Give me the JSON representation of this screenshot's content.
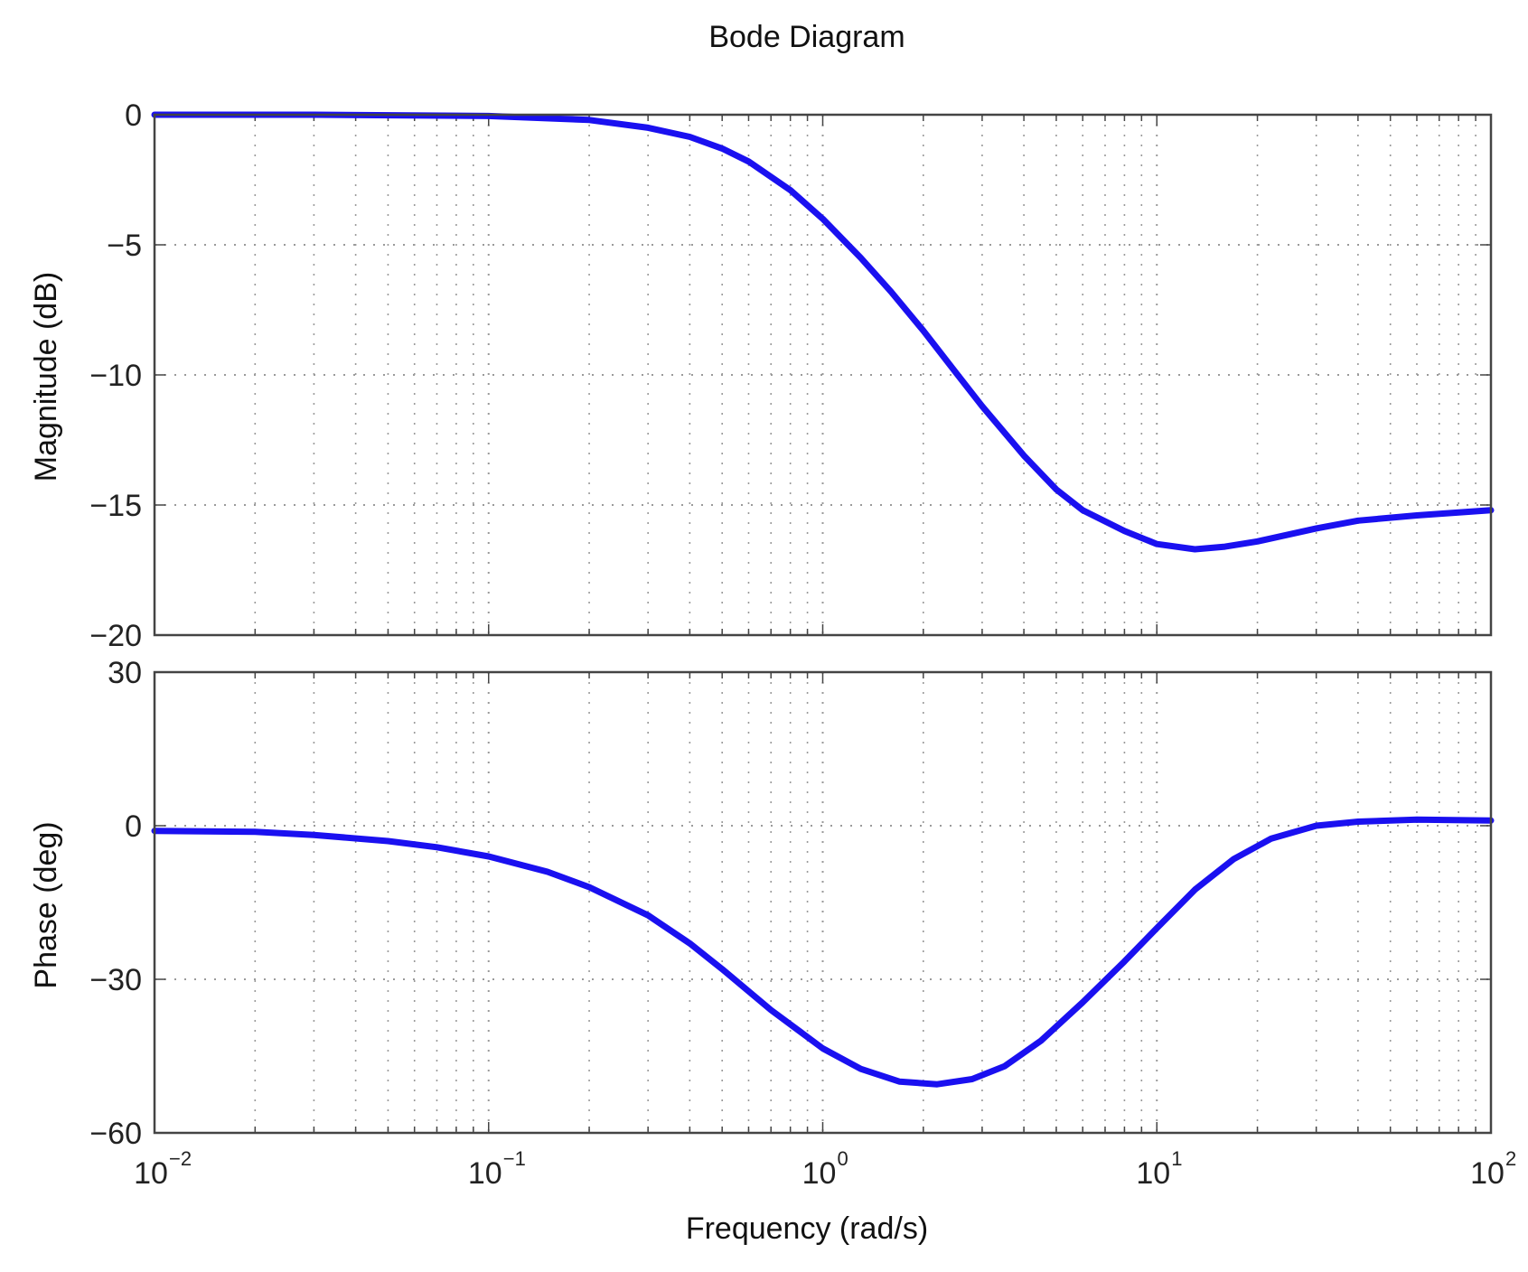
{
  "chart_data": {
    "type": "line",
    "title": "Bode Diagram",
    "xlabel": "Frequency  (rad/s)",
    "x_scale": "log",
    "xlim": [
      0.01,
      100
    ],
    "x_ticks": [
      {
        "base": "10",
        "exp": "−2"
      },
      {
        "base": "10",
        "exp": "−1"
      },
      {
        "base": "10",
        "exp": "0"
      },
      {
        "base": "10",
        "exp": "1"
      },
      {
        "base": "10",
        "exp": "2"
      }
    ],
    "grid": true,
    "line_color": "#1a10f0",
    "panels": [
      {
        "ylabel": "Magnitude (dB)",
        "ylim": [
          -20,
          0
        ],
        "y_ticks": [
          0,
          -5,
          -10,
          -15,
          -20
        ],
        "y_tick_labels": [
          "0",
          "−5",
          "−10",
          "−15",
          "−20"
        ],
        "series": [
          {
            "x": [
              0.01,
              0.03,
              0.1,
              0.2,
              0.3,
              0.4,
              0.5,
              0.6,
              0.8,
              1.0,
              1.3,
              1.6,
              2.0,
              2.5,
              3.0,
              4.0,
              5.0,
              6.0,
              8.0,
              10.0,
              13.0,
              16.0,
              20.0,
              30.0,
              40.0,
              60.0,
              100.0
            ],
            "values": [
              0,
              0,
              -0.05,
              -0.2,
              -0.5,
              -0.85,
              -1.3,
              -1.8,
              -2.9,
              -4.0,
              -5.5,
              -6.8,
              -8.3,
              -9.9,
              -11.2,
              -13.1,
              -14.4,
              -15.2,
              -16.0,
              -16.5,
              -16.7,
              -16.6,
              -16.4,
              -15.9,
              -15.6,
              -15.4,
              -15.2
            ]
          }
        ]
      },
      {
        "ylabel": "Phase (deg)",
        "ylim": [
          -60,
          30
        ],
        "y_ticks": [
          30,
          0,
          -30,
          -60
        ],
        "y_tick_labels": [
          "30",
          "0",
          "−30",
          "−60"
        ],
        "series": [
          {
            "x": [
              0.01,
              0.02,
              0.03,
              0.05,
              0.07,
              0.1,
              0.15,
              0.2,
              0.3,
              0.4,
              0.5,
              0.7,
              1.0,
              1.3,
              1.7,
              2.2,
              2.8,
              3.5,
              4.5,
              6.0,
              8.0,
              10.0,
              13.0,
              17.0,
              22.0,
              30.0,
              40.0,
              60.0,
              100.0
            ],
            "values": [
              -1.0,
              -1.2,
              -1.8,
              -3.0,
              -4.2,
              -6.0,
              -9.0,
              -12.0,
              -17.5,
              -23.0,
              -28.0,
              -36.0,
              -43.5,
              -47.5,
              -50.0,
              -50.5,
              -49.5,
              -47.0,
              -42.0,
              -34.5,
              -26.5,
              -20.0,
              -12.5,
              -6.5,
              -2.5,
              0.0,
              0.8,
              1.2,
              1.0
            ]
          }
        ]
      }
    ]
  }
}
